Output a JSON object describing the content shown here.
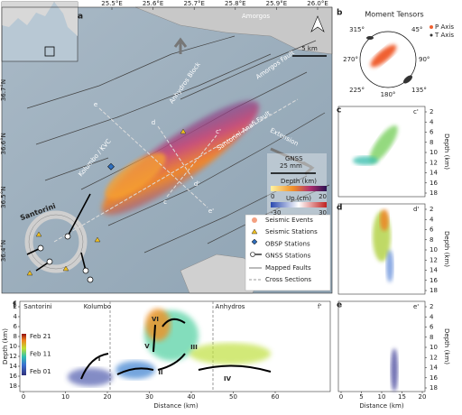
{
  "map": {
    "label": "a",
    "lon_labels": [
      "25.5°E",
      "25.6°E",
      "25.7°E",
      "25.8°E",
      "25.9°E",
      "26.0°E"
    ],
    "lat_labels": [
      "36.7°N",
      "36.6°N",
      "36.5°N",
      "36.4°N"
    ],
    "places": {
      "amorgos": "Amorgos",
      "anhydros_block": "Anhydros Block",
      "amorgos_fault": "Amorgos Fault",
      "kolumbo": "Kolumbo / KVC",
      "santorini_anafi": "Santorini-Anafi Fault",
      "extension": "Extension",
      "santorini": "Santorini"
    },
    "scale": "5 km",
    "sections": [
      "c",
      "c'",
      "d",
      "d'",
      "e",
      "e'"
    ],
    "gnss_key": [
      "GNSS",
      "25 mm"
    ],
    "depth_bar": [
      "0",
      "Depth (km)",
      "20"
    ],
    "up_bar": [
      "-30",
      "Up (cm)",
      "30"
    ],
    "legend": [
      "Seismic Events",
      "Seismic Stations",
      "OBSP Stations",
      "GNSS Stations",
      "Mapped Faults",
      "Cross Sections"
    ]
  },
  "tensors": {
    "label": "b",
    "title": "Moment Tensors",
    "azimuths": [
      "315°",
      "45°",
      "270°",
      "90°",
      "225°",
      "135°",
      "180°"
    ],
    "legend": [
      "P Axis",
      "T Axis"
    ]
  },
  "sections": {
    "c": {
      "label": "c",
      "end": "c'"
    },
    "d": {
      "label": "d",
      "end": "d'"
    },
    "e": {
      "label": "e",
      "end": "e'"
    },
    "depth_label": "Depth (km)",
    "depth_ticks": [
      2,
      4,
      6,
      8,
      10,
      12,
      14,
      16,
      18
    ],
    "distance_label": "Distance (km)",
    "distance_ticks": [
      0,
      5,
      10,
      15,
      20
    ]
  },
  "profile": {
    "label": "f",
    "end": "f'",
    "places": [
      "Santorini",
      "Kolumbo",
      "Anhydros"
    ],
    "phases": [
      "I",
      "II",
      "III",
      "IV",
      "V",
      "VI"
    ],
    "distance_label": "Distance (km)",
    "distance_ticks": [
      0,
      10,
      20,
      30,
      40,
      50,
      60
    ],
    "depth_label": "Depth (km)",
    "depth_ticks": [
      2,
      4,
      6,
      8,
      10,
      12,
      14,
      16,
      18
    ],
    "dates": [
      "Feb 21",
      "Feb 11",
      "Feb 01"
    ]
  }
}
